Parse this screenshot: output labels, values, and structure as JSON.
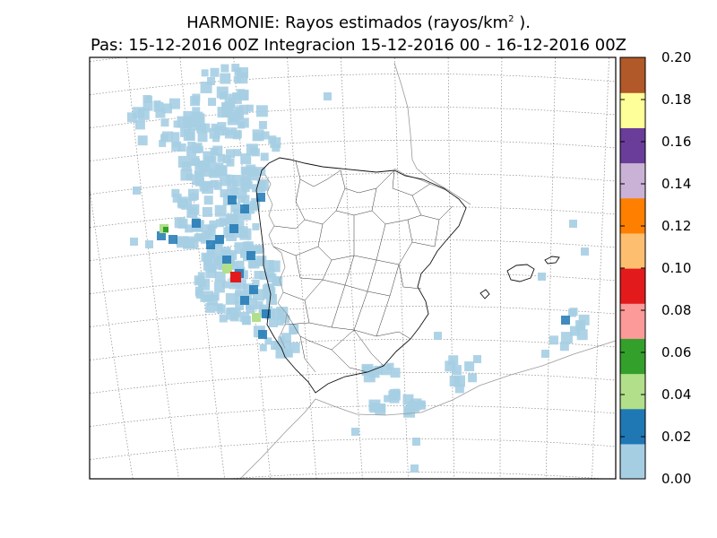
{
  "title": {
    "line1_prefix": "HARMONIE: Rayos estimados  (rayos/km",
    "line1_sup": "2",
    "line1_suffix": " ).",
    "line2": "Pas: 15-12-2016 00Z Integracion 15-12-2016 00 - 16-12-2016 00Z"
  },
  "colorbar": {
    "min": 0.0,
    "max": 0.2,
    "tick_labels": [
      "0.00",
      "0.02",
      "0.04",
      "0.06",
      "0.08",
      "0.10",
      "0.12",
      "0.14",
      "0.16",
      "0.18",
      "0.20"
    ],
    "colors": [
      "#a6cee3",
      "#1f78b4",
      "#b2df8a",
      "#33a02c",
      "#fb9a99",
      "#e31a1c",
      "#fdbf6f",
      "#ff7f00",
      "#cab2d6",
      "#6a3d9a",
      "#ffff99",
      "#b15928"
    ]
  },
  "map": {
    "region": "Iberian Peninsula and Balearic Islands",
    "graticule": "dotted",
    "background": "#ffffff",
    "coastline_color": "#000000",
    "border_color": "#9a9a9a"
  }
}
